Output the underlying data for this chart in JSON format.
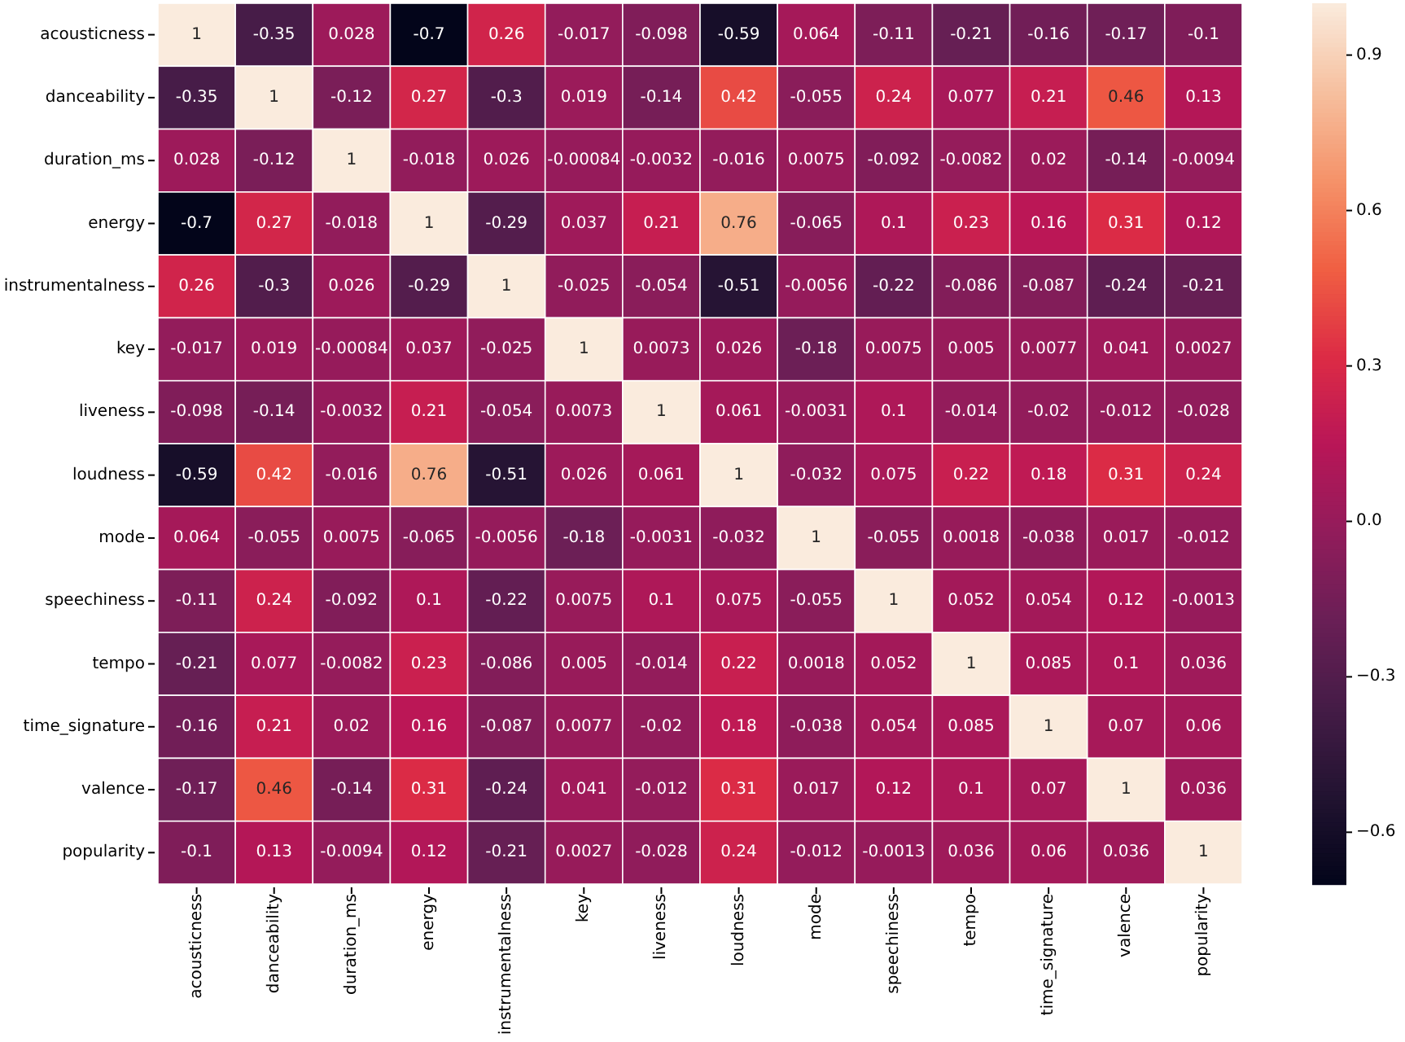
{
  "chart_data": {
    "type": "heatmap",
    "categories": [
      "acousticness",
      "danceability",
      "duration_ms",
      "energy",
      "instrumentalness",
      "key",
      "liveness",
      "loudness",
      "mode",
      "speechiness",
      "tempo",
      "time_signature",
      "valence",
      "popularity"
    ],
    "y_categories": [
      "acousticness",
      "danceability",
      "duration_ms",
      "energy",
      "instrumentalness",
      "key",
      "liveness",
      "loudness",
      "mode",
      "speechiness",
      "tempo",
      "time_signature",
      "valence",
      "popularity"
    ],
    "cells": [
      [
        1,
        -0.35,
        0.028,
        -0.7,
        0.26,
        -0.017,
        -0.098,
        -0.59,
        0.064,
        -0.11,
        -0.21,
        -0.16,
        -0.17,
        -0.1
      ],
      [
        -0.35,
        1,
        -0.12,
        0.27,
        -0.3,
        0.019,
        -0.14,
        0.42,
        -0.055,
        0.24,
        0.077,
        0.21,
        0.46,
        0.13
      ],
      [
        0.028,
        -0.12,
        1,
        -0.018,
        0.026,
        -0.00084,
        -0.0032,
        -0.016,
        0.0075,
        -0.092,
        -0.0082,
        0.02,
        -0.14,
        -0.0094
      ],
      [
        -0.7,
        0.27,
        -0.018,
        1,
        -0.29,
        0.037,
        0.21,
        0.76,
        -0.065,
        0.1,
        0.23,
        0.16,
        0.31,
        0.12
      ],
      [
        0.26,
        -0.3,
        0.026,
        -0.29,
        1,
        -0.025,
        -0.054,
        -0.51,
        -0.0056,
        -0.22,
        -0.086,
        -0.087,
        -0.24,
        -0.21
      ],
      [
        -0.017,
        0.019,
        -0.00084,
        0.037,
        -0.025,
        1,
        0.0073,
        0.026,
        -0.18,
        0.0075,
        0.005,
        0.0077,
        0.041,
        0.0027
      ],
      [
        -0.098,
        -0.14,
        -0.0032,
        0.21,
        -0.054,
        0.0073,
        1,
        0.061,
        -0.0031,
        0.1,
        -0.014,
        -0.02,
        -0.012,
        -0.028
      ],
      [
        -0.59,
        0.42,
        -0.016,
        0.76,
        -0.51,
        0.026,
        0.061,
        1,
        -0.032,
        0.075,
        0.22,
        0.18,
        0.31,
        0.24
      ],
      [
        0.064,
        -0.055,
        0.0075,
        -0.065,
        -0.0056,
        -0.18,
        -0.0031,
        -0.032,
        1,
        -0.055,
        0.0018,
        -0.038,
        0.017,
        -0.012
      ],
      [
        -0.11,
        0.24,
        -0.092,
        0.1,
        -0.22,
        0.0075,
        0.1,
        0.075,
        -0.055,
        1,
        0.052,
        0.054,
        0.12,
        -0.0013
      ],
      [
        -0.21,
        0.077,
        -0.0082,
        0.23,
        -0.086,
        0.005,
        -0.014,
        0.22,
        0.0018,
        0.052,
        1,
        0.085,
        0.1,
        0.036
      ],
      [
        -0.16,
        0.21,
        0.02,
        0.16,
        -0.087,
        0.0077,
        -0.02,
        0.18,
        -0.038,
        0.054,
        0.085,
        1,
        0.07,
        0.06
      ],
      [
        -0.17,
        0.46,
        -0.14,
        0.31,
        -0.24,
        0.041,
        -0.012,
        0.31,
        0.017,
        0.12,
        0.1,
        0.07,
        1,
        0.036
      ],
      [
        -0.1,
        0.13,
        -0.0094,
        0.12,
        -0.21,
        0.0027,
        -0.028,
        0.24,
        -0.012,
        -0.0013,
        0.036,
        0.06,
        0.036,
        1
      ]
    ],
    "data_labels": true,
    "clim": [
      -0.7,
      1
    ],
    "cticks": [
      {
        "value": 0.9,
        "label": "0.9"
      },
      {
        "value": 0.6,
        "label": "0.6"
      },
      {
        "value": 0.3,
        "label": "0.3"
      },
      {
        "value": 0,
        "label": "0.0"
      },
      {
        "value": -0.3,
        "label": "−0.3"
      },
      {
        "value": -0.6,
        "label": "−0.6"
      }
    ]
  }
}
